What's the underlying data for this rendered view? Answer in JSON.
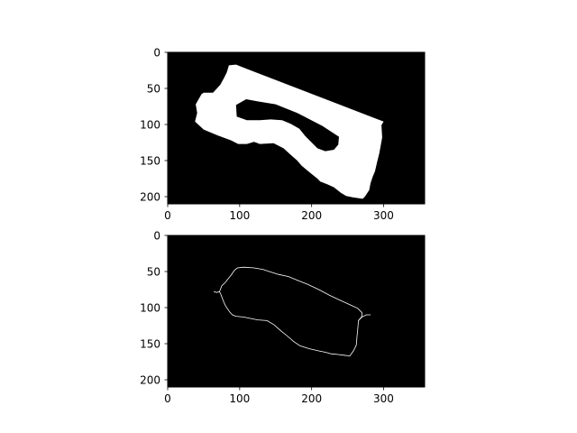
{
  "chart_data": [
    {
      "type": "image",
      "description_kind": "binary mask",
      "xlim": [
        0,
        357
      ],
      "ylim": [
        0,
        210
      ],
      "y_inverted": true,
      "xticks": [
        0,
        100,
        200,
        300
      ],
      "yticks": [
        0,
        50,
        100,
        150,
        200
      ],
      "xtick_labels": [
        "0",
        "100",
        "200",
        "300"
      ],
      "ytick_labels": [
        "0",
        "50",
        "100",
        "150",
        "200"
      ],
      "background_color": "#000000",
      "foreground_color": "#ffffff",
      "outer_shape": [
        [
          85,
          18
        ],
        [
          95,
          17
        ],
        [
          110,
          23
        ],
        [
          300,
          96
        ],
        [
          297,
          101
        ],
        [
          298,
          118
        ],
        [
          294,
          140
        ],
        [
          291,
          152
        ],
        [
          288,
          165
        ],
        [
          285,
          172
        ],
        [
          282,
          181
        ],
        [
          280,
          191
        ],
        [
          274,
          200
        ],
        [
          271,
          203
        ],
        [
          257,
          201
        ],
        [
          248,
          199
        ],
        [
          241,
          195
        ],
        [
          231,
          187
        ],
        [
          222,
          183
        ],
        [
          212,
          179
        ],
        [
          208,
          175
        ],
        [
          198,
          167
        ],
        [
          186,
          157
        ],
        [
          180,
          150
        ],
        [
          172,
          143
        ],
        [
          161,
          133
        ],
        [
          147,
          126
        ],
        [
          128,
          127
        ],
        [
          120,
          124
        ],
        [
          110,
          127
        ],
        [
          98,
          127
        ],
        [
          88,
          122
        ],
        [
          80,
          119
        ],
        [
          69,
          115
        ],
        [
          50,
          107
        ],
        [
          38,
          96
        ],
        [
          41,
          84
        ],
        [
          39,
          72
        ],
        [
          47,
          58
        ],
        [
          50,
          56
        ],
        [
          63,
          56
        ],
        [
          73,
          45
        ],
        [
          78,
          36
        ],
        [
          82,
          28
        ],
        [
          85,
          18
        ]
      ],
      "hole_shape": [
        [
          95,
          73
        ],
        [
          109,
          65
        ],
        [
          125,
          68
        ],
        [
          150,
          72
        ],
        [
          180,
          84
        ],
        [
          215,
          102
        ],
        [
          238,
          117
        ],
        [
          237,
          128
        ],
        [
          231,
          135
        ],
        [
          219,
          137
        ],
        [
          208,
          133
        ],
        [
          191,
          116
        ],
        [
          183,
          106
        ],
        [
          171,
          99
        ],
        [
          159,
          94
        ],
        [
          143,
          93
        ],
        [
          128,
          94
        ],
        [
          110,
          94
        ],
        [
          96,
          89
        ],
        [
          95,
          73
        ]
      ]
    },
    {
      "type": "image",
      "description_kind": "edge contour",
      "xlim": [
        0,
        357
      ],
      "ylim": [
        0,
        210
      ],
      "y_inverted": true,
      "xticks": [
        0,
        100,
        200,
        300
      ],
      "yticks": [
        0,
        50,
        100,
        150,
        200
      ],
      "xtick_labels": [
        "0",
        "100",
        "200",
        "300"
      ],
      "ytick_labels": [
        "0",
        "50",
        "100",
        "150",
        "200"
      ],
      "background_color": "#000000",
      "line_color": "#ffffff",
      "contour": [
        [
          72,
          78
        ],
        [
          75,
          70
        ],
        [
          80,
          65
        ],
        [
          84,
          60
        ],
        [
          88,
          55
        ],
        [
          93,
          48
        ],
        [
          97,
          45
        ],
        [
          106,
          44
        ],
        [
          120,
          45
        ],
        [
          132,
          47
        ],
        [
          144,
          51
        ],
        [
          154,
          54
        ],
        [
          168,
          57
        ],
        [
          180,
          62
        ],
        [
          195,
          68
        ],
        [
          210,
          75
        ],
        [
          225,
          83
        ],
        [
          240,
          90
        ],
        [
          253,
          96
        ],
        [
          264,
          101
        ],
        [
          270,
          107
        ],
        [
          270,
          112
        ],
        [
          265,
          118
        ],
        [
          264,
          130
        ],
        [
          263,
          140
        ],
        [
          262,
          152
        ],
        [
          258,
          160
        ],
        [
          253,
          167
        ],
        [
          245,
          166
        ],
        [
          237,
          165
        ],
        [
          227,
          164
        ],
        [
          220,
          162
        ],
        [
          210,
          160
        ],
        [
          197,
          157
        ],
        [
          184,
          153
        ],
        [
          175,
          147
        ],
        [
          167,
          140
        ],
        [
          157,
          132
        ],
        [
          148,
          124
        ],
        [
          138,
          118
        ],
        [
          125,
          117
        ],
        [
          115,
          115
        ],
        [
          105,
          113
        ],
        [
          95,
          112
        ],
        [
          90,
          110
        ],
        [
          86,
          106
        ],
        [
          80,
          97
        ],
        [
          77,
          90
        ],
        [
          74,
          82
        ],
        [
          72,
          78
        ]
      ],
      "tail_left": [
        [
          72,
          78
        ],
        [
          68,
          79
        ],
        [
          64,
          78
        ]
      ],
      "tail_right": [
        [
          265,
          118
        ],
        [
          270,
          113
        ],
        [
          276,
          110
        ],
        [
          282,
          110
        ]
      ]
    }
  ]
}
